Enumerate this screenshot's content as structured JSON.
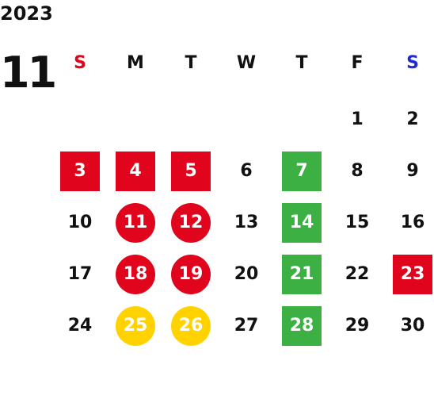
{
  "calendar": {
    "year": "2023",
    "month": "11",
    "weekdays": [
      {
        "label": "S",
        "color": "#e0041c"
      },
      {
        "label": "M",
        "color": "#111111"
      },
      {
        "label": "T",
        "color": "#111111"
      },
      {
        "label": "W",
        "color": "#111111"
      },
      {
        "label": "T",
        "color": "#111111"
      },
      {
        "label": "F",
        "color": "#111111"
      },
      {
        "label": "S",
        "color": "#1f2bd6"
      }
    ],
    "colors": {
      "red": "#e0041c",
      "green": "#3cb043",
      "yellow": "#ffd200",
      "text": "#111111"
    },
    "days": [
      {
        "day": "1",
        "style": "plain"
      },
      {
        "day": "2",
        "style": "plain"
      },
      {
        "day": "3",
        "style": "red-square"
      },
      {
        "day": "4",
        "style": "red-square"
      },
      {
        "day": "5",
        "style": "red-square"
      },
      {
        "day": "6",
        "style": "plain"
      },
      {
        "day": "7",
        "style": "green-square"
      },
      {
        "day": "8",
        "style": "plain"
      },
      {
        "day": "9",
        "style": "plain"
      },
      {
        "day": "10",
        "style": "plain"
      },
      {
        "day": "11",
        "style": "red-circle"
      },
      {
        "day": "12",
        "style": "red-circle"
      },
      {
        "day": "13",
        "style": "plain"
      },
      {
        "day": "14",
        "style": "green-square"
      },
      {
        "day": "15",
        "style": "plain"
      },
      {
        "day": "16",
        "style": "plain"
      },
      {
        "day": "17",
        "style": "plain"
      },
      {
        "day": "18",
        "style": "red-circle"
      },
      {
        "day": "19",
        "style": "red-circle"
      },
      {
        "day": "20",
        "style": "plain"
      },
      {
        "day": "21",
        "style": "green-square"
      },
      {
        "day": "22",
        "style": "plain"
      },
      {
        "day": "23",
        "style": "red-square"
      },
      {
        "day": "24",
        "style": "plain"
      },
      {
        "day": "25",
        "style": "yellow-circle"
      },
      {
        "day": "26",
        "style": "yellow-circle"
      },
      {
        "day": "27",
        "style": "plain"
      },
      {
        "day": "28",
        "style": "green-square"
      },
      {
        "day": "29",
        "style": "plain"
      },
      {
        "day": "30",
        "style": "plain"
      }
    ]
  }
}
